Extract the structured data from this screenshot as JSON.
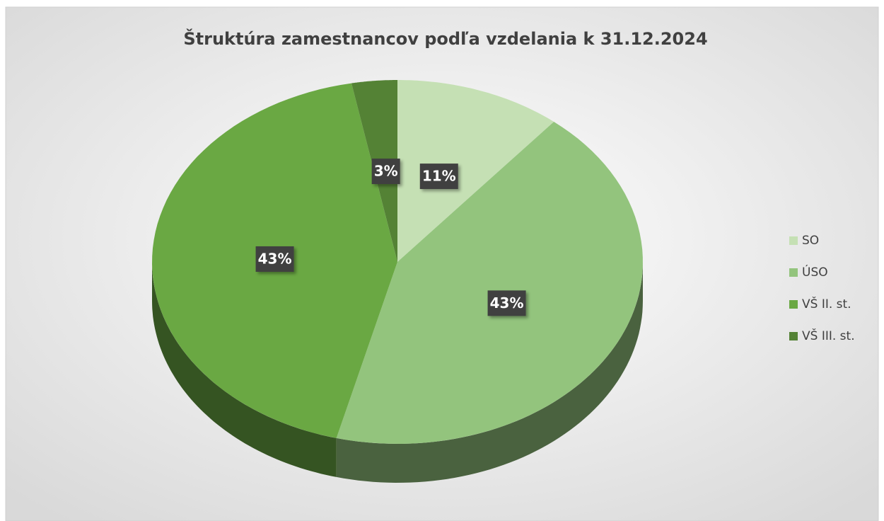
{
  "chart_data": {
    "type": "pie",
    "title": "Štruktúra zamestnancov podľa vzdelania k 31.12.2024",
    "categories": [
      "SO",
      "ÚSO",
      "VŠ II. st.",
      "VŠ III. st."
    ],
    "values": [
      11,
      43,
      43,
      3
    ],
    "value_labels": [
      "11%",
      "43%",
      "43%",
      "3%"
    ],
    "colors": [
      "#c5e0b4",
      "#93c47d",
      "#6aa843",
      "#548235"
    ],
    "legend": "right"
  }
}
